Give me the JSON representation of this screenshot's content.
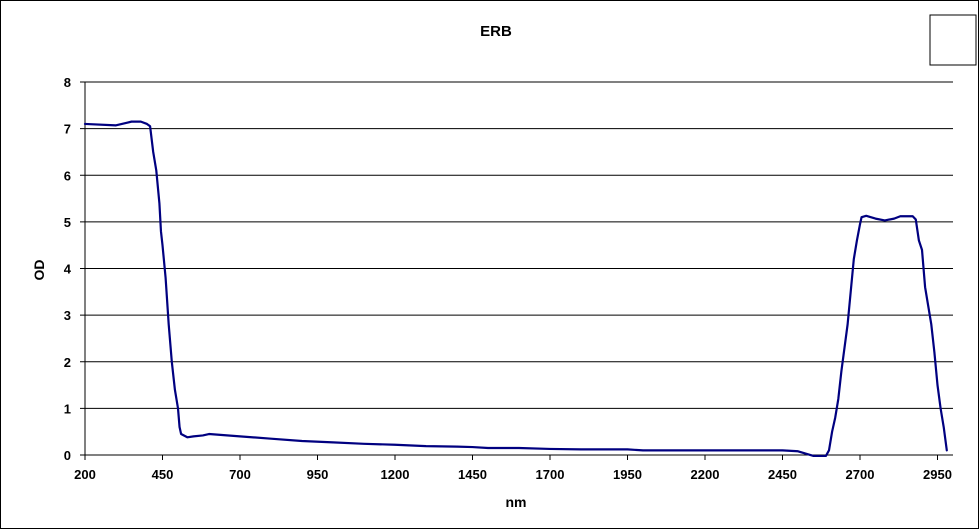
{
  "chart_data": {
    "type": "line",
    "title": "ERB",
    "xlabel": "nm",
    "ylabel": "OD",
    "xlim": [
      200,
      3000
    ],
    "ylim": [
      0,
      8
    ],
    "x_ticks": [
      200,
      450,
      700,
      950,
      1200,
      1450,
      1700,
      1950,
      2200,
      2450,
      2700,
      2950
    ],
    "y_ticks": [
      0,
      1,
      2,
      3,
      4,
      5,
      6,
      7,
      8
    ],
    "grid": "horizontal",
    "legend": "top-right empty box",
    "series": [
      {
        "color": "#000080",
        "points": [
          [
            200,
            7.1
          ],
          [
            300,
            7.07
          ],
          [
            350,
            7.15
          ],
          [
            380,
            7.15
          ],
          [
            400,
            7.1
          ],
          [
            410,
            7.05
          ],
          [
            420,
            6.5
          ],
          [
            430,
            6.1
          ],
          [
            440,
            5.4
          ],
          [
            445,
            4.8
          ],
          [
            450,
            4.5
          ],
          [
            460,
            3.8
          ],
          [
            470,
            2.8
          ],
          [
            480,
            2.0
          ],
          [
            490,
            1.4
          ],
          [
            500,
            1.0
          ],
          [
            505,
            0.6
          ],
          [
            510,
            0.45
          ],
          [
            530,
            0.38
          ],
          [
            550,
            0.4
          ],
          [
            580,
            0.42
          ],
          [
            600,
            0.45
          ],
          [
            700,
            0.4
          ],
          [
            800,
            0.35
          ],
          [
            900,
            0.3
          ],
          [
            1000,
            0.27
          ],
          [
            1100,
            0.24
          ],
          [
            1200,
            0.22
          ],
          [
            1300,
            0.19
          ],
          [
            1400,
            0.18
          ],
          [
            1450,
            0.17
          ],
          [
            1500,
            0.15
          ],
          [
            1600,
            0.15
          ],
          [
            1700,
            0.13
          ],
          [
            1800,
            0.12
          ],
          [
            1950,
            0.12
          ],
          [
            2000,
            0.1
          ],
          [
            2200,
            0.1
          ],
          [
            2450,
            0.1
          ],
          [
            2500,
            0.08
          ],
          [
            2550,
            -0.02
          ],
          [
            2590,
            -0.02
          ],
          [
            2600,
            0.1
          ],
          [
            2610,
            0.5
          ],
          [
            2620,
            0.8
          ],
          [
            2630,
            1.2
          ],
          [
            2640,
            1.8
          ],
          [
            2650,
            2.3
          ],
          [
            2660,
            2.8
          ],
          [
            2670,
            3.5
          ],
          [
            2680,
            4.2
          ],
          [
            2690,
            4.6
          ],
          [
            2700,
            4.95
          ],
          [
            2705,
            5.1
          ],
          [
            2720,
            5.13
          ],
          [
            2750,
            5.07
          ],
          [
            2780,
            5.03
          ],
          [
            2810,
            5.07
          ],
          [
            2830,
            5.12
          ],
          [
            2850,
            5.12
          ],
          [
            2870,
            5.12
          ],
          [
            2880,
            5.05
          ],
          [
            2890,
            4.6
          ],
          [
            2900,
            4.4
          ],
          [
            2910,
            3.6
          ],
          [
            2920,
            3.2
          ],
          [
            2930,
            2.8
          ],
          [
            2940,
            2.2
          ],
          [
            2950,
            1.5
          ],
          [
            2960,
            1.0
          ],
          [
            2970,
            0.6
          ],
          [
            2980,
            0.1
          ]
        ]
      }
    ]
  }
}
